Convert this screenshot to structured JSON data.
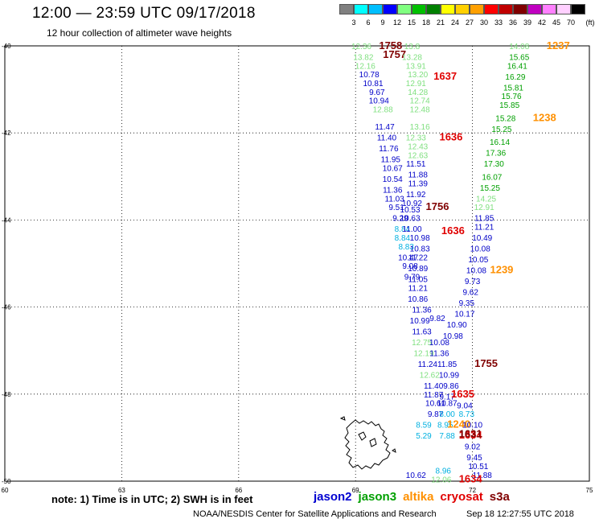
{
  "header": {
    "title": "12:00 — 23:59 UTC 09/17/2018",
    "subtitle": "12 hour collection of altimeter wave heights"
  },
  "colorbar": {
    "unit": "(ft)",
    "bins": [
      {
        "label": "3",
        "color": "#808080"
      },
      {
        "label": "6",
        "color": "#00ffff"
      },
      {
        "label": "9",
        "color": "#00bfff"
      },
      {
        "label": "12",
        "color": "#0000ff"
      },
      {
        "label": "15",
        "color": "#80ff80"
      },
      {
        "label": "18",
        "color": "#00c000"
      },
      {
        "label": "21",
        "color": "#008000"
      },
      {
        "label": "24",
        "color": "#ffff00"
      },
      {
        "label": "27",
        "color": "#ffd000"
      },
      {
        "label": "30",
        "color": "#ffa000"
      },
      {
        "label": "33",
        "color": "#ff0000"
      },
      {
        "label": "36",
        "color": "#c00000"
      },
      {
        "label": "39",
        "color": "#800000"
      },
      {
        "label": "42",
        "color": "#c000c0"
      },
      {
        "label": "45",
        "color": "#ff80ff"
      },
      {
        "label": "70",
        "color": "#ffd0ff"
      },
      {
        "label": "",
        "color": "#000000"
      }
    ]
  },
  "axes": {
    "lat_labels": [
      "-40",
      "-42",
      "-44",
      "-46",
      "-48",
      "-50"
    ],
    "lon_labels": [
      "60",
      "63",
      "66",
      "69",
      "72",
      "75"
    ]
  },
  "observations": [
    {
      "text": "12.36",
      "color": "#80e080",
      "lon": 69.15,
      "lat": -40.0
    },
    {
      "text": "1758",
      "color": "#800000",
      "lon": 69.9,
      "lat": -40.0,
      "big": true
    },
    {
      "text": "13.8",
      "color": "#80e080",
      "lon": 70.45,
      "lat": -40.0
    },
    {
      "text": "13.82",
      "color": "#80e080",
      "lon": 69.2,
      "lat": -40.25
    },
    {
      "text": "1757",
      "color": "#800000",
      "lon": 70.0,
      "lat": -40.2,
      "big": true
    },
    {
      "text": "13.28",
      "color": "#80e080",
      "lon": 70.45,
      "lat": -40.25
    },
    {
      "text": "12.16",
      "color": "#80e080",
      "lon": 69.25,
      "lat": -40.45
    },
    {
      "text": "13.91",
      "color": "#80e080",
      "lon": 70.55,
      "lat": -40.45
    },
    {
      "text": "10.78",
      "color": "#0000c8",
      "lon": 69.35,
      "lat": -40.65
    },
    {
      "text": "13.20",
      "color": "#80e080",
      "lon": 70.6,
      "lat": -40.65
    },
    {
      "text": "1637",
      "color": "#e00000",
      "lon": 71.3,
      "lat": -40.7,
      "big": true
    },
    {
      "text": "10.81",
      "color": "#0000c8",
      "lon": 69.45,
      "lat": -40.85
    },
    {
      "text": "12.91",
      "color": "#80e080",
      "lon": 70.55,
      "lat": -40.85
    },
    {
      "text": "9.67",
      "color": "#0000c8",
      "lon": 69.55,
      "lat": -41.05
    },
    {
      "text": "14.28",
      "color": "#80e080",
      "lon": 70.6,
      "lat": -41.05
    },
    {
      "text": "10.94",
      "color": "#0000c8",
      "lon": 69.6,
      "lat": -41.25
    },
    {
      "text": "12.74",
      "color": "#80e080",
      "lon": 70.65,
      "lat": -41.25
    },
    {
      "text": "12.88",
      "color": "#80e080",
      "lon": 69.7,
      "lat": -41.45
    },
    {
      "text": "12.48",
      "color": "#80e080",
      "lon": 70.65,
      "lat": -41.45
    },
    {
      "text": "11.47",
      "color": "#0000c8",
      "lon": 69.75,
      "lat": -41.85
    },
    {
      "text": "13.16",
      "color": "#80e080",
      "lon": 70.65,
      "lat": -41.85
    },
    {
      "text": "11.40",
      "color": "#0000c8",
      "lon": 69.8,
      "lat": -42.1
    },
    {
      "text": "12.33",
      "color": "#80e080",
      "lon": 70.55,
      "lat": -42.1
    },
    {
      "text": "1636",
      "color": "#e00000",
      "lon": 71.45,
      "lat": -42.1,
      "big": true
    },
    {
      "text": "11.76",
      "color": "#0000c8",
      "lon": 69.85,
      "lat": -42.35
    },
    {
      "text": "12.43",
      "color": "#80e080",
      "lon": 70.6,
      "lat": -42.3
    },
    {
      "text": "11.95",
      "color": "#0000c8",
      "lon": 69.9,
      "lat": -42.6
    },
    {
      "text": "12.63",
      "color": "#80e080",
      "lon": 70.6,
      "lat": -42.5
    },
    {
      "text": "10.67",
      "color": "#0000c8",
      "lon": 69.95,
      "lat": -42.8
    },
    {
      "text": "11.51",
      "color": "#0000c8",
      "lon": 70.55,
      "lat": -42.7
    },
    {
      "text": "10.54",
      "color": "#0000c8",
      "lon": 69.95,
      "lat": -43.05
    },
    {
      "text": "11.88",
      "color": "#0000c8",
      "lon": 70.6,
      "lat": -42.95
    },
    {
      "text": "11.36",
      "color": "#0000c8",
      "lon": 69.95,
      "lat": -43.3
    },
    {
      "text": "11.39",
      "color": "#0000c8",
      "lon": 70.6,
      "lat": -43.15
    },
    {
      "text": "11.03",
      "color": "#0000c8",
      "lon": 70.0,
      "lat": -43.5
    },
    {
      "text": "11.92",
      "color": "#0000c8",
      "lon": 70.55,
      "lat": -43.4
    },
    {
      "text": "9.51",
      "color": "#0000c8",
      "lon": 70.05,
      "lat": -43.7
    },
    {
      "text": "10.92",
      "color": "#0000c8",
      "lon": 70.45,
      "lat": -43.6
    },
    {
      "text": "10.53",
      "color": "#0000c8",
      "lon": 70.4,
      "lat": -43.75
    },
    {
      "text": "1756",
      "color": "#800000",
      "lon": 71.1,
      "lat": -43.7,
      "big": true
    },
    {
      "text": "9.29",
      "color": "#0000c8",
      "lon": 70.15,
      "lat": -43.95
    },
    {
      "text": "10.63",
      "color": "#0000c8",
      "lon": 70.4,
      "lat": -43.95
    },
    {
      "text": "11.85",
      "color": "#0000c8",
      "lon": 72.3,
      "lat": -43.95
    },
    {
      "text": "8.84",
      "color": "#00b0e0",
      "lon": 70.2,
      "lat": -44.2
    },
    {
      "text": "11.00",
      "color": "#0000c8",
      "lon": 70.45,
      "lat": -44.2
    },
    {
      "text": "1636",
      "color": "#e00000",
      "lon": 71.5,
      "lat": -44.25,
      "big": true
    },
    {
      "text": "11.21",
      "color": "#0000c8",
      "lon": 72.3,
      "lat": -44.15
    },
    {
      "text": "8.84",
      "color": "#00b0e0",
      "lon": 70.2,
      "lat": -44.4
    },
    {
      "text": "10.98",
      "color": "#0000c8",
      "lon": 70.65,
      "lat": -44.4
    },
    {
      "text": "10.49",
      "color": "#0000c8",
      "lon": 72.25,
      "lat": -44.4
    },
    {
      "text": "8.83",
      "color": "#00b0e0",
      "lon": 70.3,
      "lat": -44.6
    },
    {
      "text": "10.83",
      "color": "#0000c8",
      "lon": 70.65,
      "lat": -44.65
    },
    {
      "text": "10.08",
      "color": "#0000c8",
      "lon": 72.2,
      "lat": -44.65
    },
    {
      "text": "10.47",
      "color": "#0000c8",
      "lon": 70.35,
      "lat": -44.85
    },
    {
      "text": "11.22",
      "color": "#0000c8",
      "lon": 70.6,
      "lat": -44.85
    },
    {
      "text": "10.05",
      "color": "#0000c8",
      "lon": 72.15,
      "lat": -44.9
    },
    {
      "text": "9.08",
      "color": "#0000c8",
      "lon": 70.4,
      "lat": -45.05
    },
    {
      "text": "10.89",
      "color": "#0000c8",
      "lon": 70.6,
      "lat": -45.1
    },
    {
      "text": "10.08",
      "color": "#0000c8",
      "lon": 72.1,
      "lat": -45.15
    },
    {
      "text": "1239",
      "color": "#ff9000",
      "lon": 72.75,
      "lat": -45.15,
      "big": true
    },
    {
      "text": "9.79",
      "color": "#0000c8",
      "lon": 70.45,
      "lat": -45.3
    },
    {
      "text": "11.05",
      "color": "#0000c8",
      "lon": 70.6,
      "lat": -45.35
    },
    {
      "text": "9.73",
      "color": "#0000c8",
      "lon": 72.0,
      "lat": -45.4
    },
    {
      "text": "11.21",
      "color": "#0000c8",
      "lon": 70.6,
      "lat": -45.55
    },
    {
      "text": "9.62",
      "color": "#0000c8",
      "lon": 71.95,
      "lat": -45.65
    },
    {
      "text": "10.86",
      "color": "#0000c8",
      "lon": 70.6,
      "lat": -45.8
    },
    {
      "text": "9.35",
      "color": "#0000c8",
      "lon": 71.85,
      "lat": -45.9
    },
    {
      "text": "11.36",
      "color": "#0000c8",
      "lon": 70.7,
      "lat": -46.05
    },
    {
      "text": "10.17",
      "color": "#0000c8",
      "lon": 71.8,
      "lat": -46.15
    },
    {
      "text": "10.99",
      "color": "#0000c8",
      "lon": 70.65,
      "lat": -46.3
    },
    {
      "text": "9.82",
      "color": "#0000c8",
      "lon": 71.1,
      "lat": -46.25
    },
    {
      "text": "10.90",
      "color": "#0000c8",
      "lon": 71.6,
      "lat": -46.4
    },
    {
      "text": "11.63",
      "color": "#0000c8",
      "lon": 70.7,
      "lat": -46.55
    },
    {
      "text": "10.98",
      "color": "#0000c8",
      "lon": 71.5,
      "lat": -46.65
    },
    {
      "text": "12.75",
      "color": "#80e080",
      "lon": 70.7,
      "lat": -46.8
    },
    {
      "text": "10.08",
      "color": "#0000c8",
      "lon": 71.15,
      "lat": -46.8
    },
    {
      "text": "12.19",
      "color": "#80e080",
      "lon": 70.75,
      "lat": -47.05
    },
    {
      "text": "11.36",
      "color": "#0000c8",
      "lon": 71.15,
      "lat": -47.05
    },
    {
      "text": "11.24",
      "color": "#0000c8",
      "lon": 70.85,
      "lat": -47.3
    },
    {
      "text": "11.85",
      "color": "#0000c8",
      "lon": 71.35,
      "lat": -47.3
    },
    {
      "text": "1755",
      "color": "#800000",
      "lon": 72.35,
      "lat": -47.3,
      "big": true
    },
    {
      "text": "12.62",
      "color": "#80e080",
      "lon": 70.9,
      "lat": -47.55
    },
    {
      "text": "10.99",
      "color": "#0000c8",
      "lon": 71.4,
      "lat": -47.55
    },
    {
      "text": "11.40",
      "color": "#0000c8",
      "lon": 71.0,
      "lat": -47.8
    },
    {
      "text": "9.86",
      "color": "#0000c8",
      "lon": 71.45,
      "lat": -47.8
    },
    {
      "text": "11.87",
      "color": "#0000c8",
      "lon": 71.0,
      "lat": -48.0
    },
    {
      "text": "9.17",
      "color": "#0000c8",
      "lon": 71.35,
      "lat": -48.05
    },
    {
      "text": "1635",
      "color": "#e00000",
      "lon": 71.75,
      "lat": -48.0,
      "big": true
    },
    {
      "text": "10.61",
      "color": "#0000c8",
      "lon": 71.05,
      "lat": -48.2
    },
    {
      "text": "10.87",
      "color": "#0000c8",
      "lon": 71.35,
      "lat": -48.2
    },
    {
      "text": "9.04",
      "color": "#0000c8",
      "lon": 71.8,
      "lat": -48.25
    },
    {
      "text": "9.87",
      "color": "#0000c8",
      "lon": 71.05,
      "lat": -48.45
    },
    {
      "text": "8.00",
      "color": "#00b0e0",
      "lon": 71.35,
      "lat": -48.45
    },
    {
      "text": "8.73",
      "color": "#00b0e0",
      "lon": 71.85,
      "lat": -48.45
    },
    {
      "text": "8.59",
      "color": "#00b0e0",
      "lon": 70.75,
      "lat": -48.7
    },
    {
      "text": "8.95",
      "color": "#00b0e0",
      "lon": 71.3,
      "lat": -48.7
    },
    {
      "text": "1240",
      "color": "#ff9000",
      "lon": 71.65,
      "lat": -48.7,
      "big": true
    },
    {
      "text": "10.10",
      "color": "#0000c8",
      "lon": 72.0,
      "lat": -48.7
    },
    {
      "text": "5.29",
      "color": "#00b0e0",
      "lon": 70.75,
      "lat": -48.95
    },
    {
      "text": "7.88",
      "color": "#00b0e0",
      "lon": 71.35,
      "lat": -48.95
    },
    {
      "text": "1634",
      "color": "#e00000",
      "lon": 71.95,
      "lat": -48.95,
      "big": true
    },
    {
      "text": "1631",
      "color": "#800000",
      "lon": 71.95,
      "lat": -48.92,
      "big": true
    },
    {
      "text": "9.02",
      "color": "#0000c8",
      "lon": 72.0,
      "lat": -49.2
    },
    {
      "text": "9.45",
      "color": "#0000c8",
      "lon": 72.05,
      "lat": -49.45
    },
    {
      "text": "10.51",
      "color": "#0000c8",
      "lon": 72.15,
      "lat": -49.65
    },
    {
      "text": "8.96",
      "color": "#00b0e0",
      "lon": 71.25,
      "lat": -49.75
    },
    {
      "text": "11.88",
      "color": "#0000c8",
      "lon": 72.25,
      "lat": -49.85
    },
    {
      "text": "10.62",
      "color": "#0000c8",
      "lon": 70.55,
      "lat": -49.85
    },
    {
      "text": "12.06",
      "color": "#80e080",
      "lon": 71.2,
      "lat": -49.95
    },
    {
      "text": "1634",
      "color": "#e00000",
      "lon": 71.95,
      "lat": -49.95,
      "big": true
    },
    {
      "text": "14.08",
      "color": "#80e080",
      "lon": 73.2,
      "lat": -40.0
    },
    {
      "text": "1237",
      "color": "#ff9000",
      "lon": 74.2,
      "lat": -40.0,
      "big": true
    },
    {
      "text": "15.65",
      "color": "#00a000",
      "lon": 73.2,
      "lat": -40.25
    },
    {
      "text": "16.41",
      "color": "#00a000",
      "lon": 73.15,
      "lat": -40.45
    },
    {
      "text": "16.29",
      "color": "#00a000",
      "lon": 73.1,
      "lat": -40.7
    },
    {
      "text": "15.81",
      "color": "#00a000",
      "lon": 73.05,
      "lat": -40.95
    },
    {
      "text": "15.76",
      "color": "#00a000",
      "lon": 73.0,
      "lat": -41.15
    },
    {
      "text": "15.85",
      "color": "#00a000",
      "lon": 72.95,
      "lat": -41.35
    },
    {
      "text": "15.28",
      "color": "#00a000",
      "lon": 72.85,
      "lat": -41.65
    },
    {
      "text": "1238",
      "color": "#ff9000",
      "lon": 73.85,
      "lat": -41.65,
      "big": true
    },
    {
      "text": "15.25",
      "color": "#00a000",
      "lon": 72.75,
      "lat": -41.9
    },
    {
      "text": "16.14",
      "color": "#00a000",
      "lon": 72.7,
      "lat": -42.2
    },
    {
      "text": "17.36",
      "color": "#00a000",
      "lon": 72.6,
      "lat": -42.45
    },
    {
      "text": "17.30",
      "color": "#00a000",
      "lon": 72.55,
      "lat": -42.7
    },
    {
      "text": "16.07",
      "color": "#00a000",
      "lon": 72.5,
      "lat": -43.0
    },
    {
      "text": "15.25",
      "color": "#00a000",
      "lon": 72.45,
      "lat": -43.25
    },
    {
      "text": "14.25",
      "color": "#80e080",
      "lon": 72.35,
      "lat": -43.5
    },
    {
      "text": "12.91",
      "color": "#80e080",
      "lon": 72.3,
      "lat": -43.7
    }
  ],
  "footer": {
    "note": "note:  1) Time is in UTC;  2) SWH is in feet",
    "legend": [
      {
        "label": "jason2",
        "color": "#0000d0"
      },
      {
        "label": "jason3",
        "color": "#00a000"
      },
      {
        "label": "altika",
        "color": "#ff9000"
      },
      {
        "label": "cryosat",
        "color": "#e00000"
      },
      {
        "label": "s3a",
        "color": "#800000"
      }
    ],
    "credit": "NOAA/NESDIS Center for Satellite Applications and Research",
    "timestamp": "Sep 18 12:27:55 UTC 2018"
  }
}
